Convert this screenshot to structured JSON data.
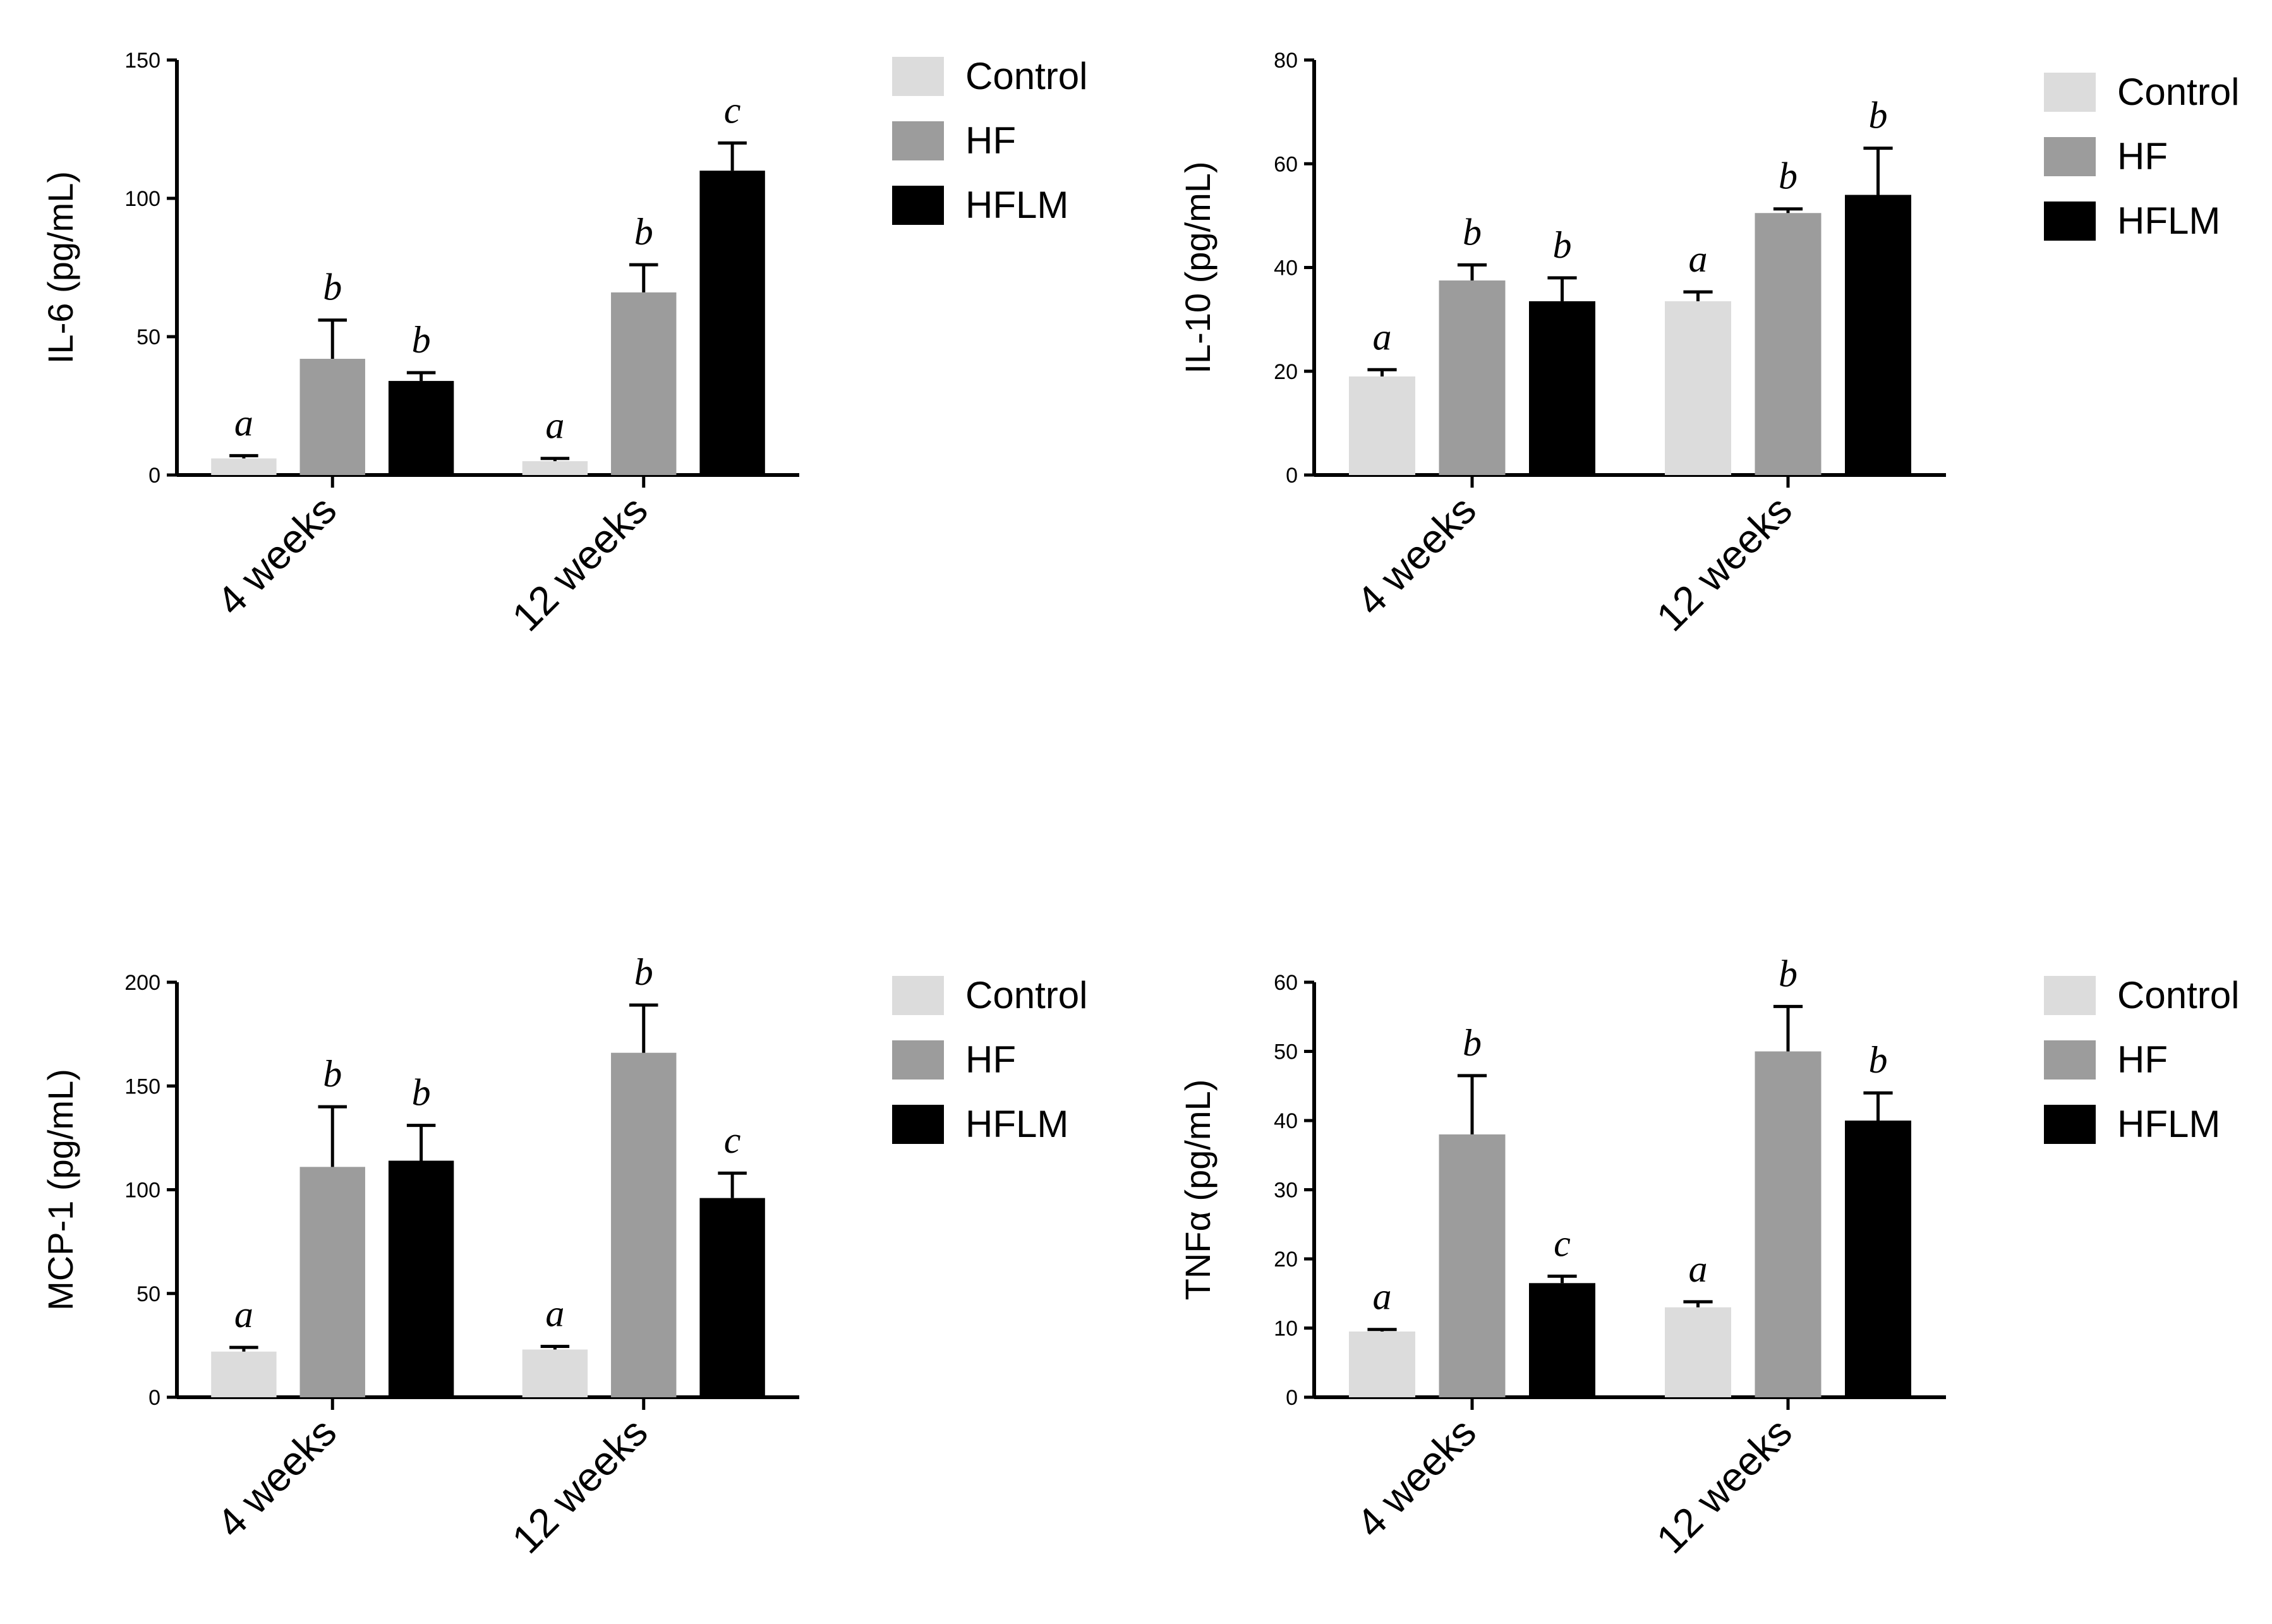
{
  "chart_data": [
    {
      "type": "bar",
      "title": "",
      "xlabel": "",
      "ylabel": "IL-6 (pg/mL)",
      "ylim": [
        0,
        150
      ],
      "yticks": [
        0,
        50,
        100,
        150
      ],
      "categories": [
        "4 weeks",
        "12 weeks"
      ],
      "series": [
        {
          "name": "Control",
          "values": [
            6,
            5
          ],
          "errors": [
            1,
            1
          ],
          "letters": [
            "a",
            "a"
          ]
        },
        {
          "name": "HF",
          "values": [
            42,
            66
          ],
          "errors": [
            14,
            10
          ],
          "letters": [
            "b",
            "b"
          ]
        },
        {
          "name": "HFLM",
          "values": [
            34,
            110
          ],
          "errors": [
            3,
            10
          ],
          "letters": [
            "b",
            "c"
          ]
        }
      ],
      "legend": "right"
    },
    {
      "type": "bar",
      "title": "",
      "xlabel": "",
      "ylabel": "IL-10 (pg/mL)",
      "ylim": [
        0,
        80
      ],
      "yticks": [
        0,
        20,
        40,
        60,
        80
      ],
      "categories": [
        "4 weeks",
        "12 weeks"
      ],
      "series": [
        {
          "name": "Control",
          "values": [
            19,
            33.5
          ],
          "errors": [
            1.3,
            1.8
          ],
          "letters": [
            "a",
            "a"
          ]
        },
        {
          "name": "HF",
          "values": [
            37.5,
            50.5
          ],
          "errors": [
            3,
            0.8
          ],
          "letters": [
            "b",
            "b"
          ]
        },
        {
          "name": "HFLM",
          "values": [
            33.5,
            54
          ],
          "errors": [
            4.5,
            9
          ],
          "letters": [
            "b",
            "b"
          ]
        }
      ],
      "legend": "right"
    },
    {
      "type": "bar",
      "title": "",
      "xlabel": "",
      "ylabel": "MCP-1 (pg/mL)",
      "ylim": [
        0,
        200
      ],
      "yticks": [
        0,
        50,
        100,
        150,
        200
      ],
      "categories": [
        "4 weeks",
        "12 weeks"
      ],
      "series": [
        {
          "name": "Control",
          "values": [
            22,
            23
          ],
          "errors": [
            2,
            1.5
          ],
          "letters": [
            "a",
            "a"
          ]
        },
        {
          "name": "HF",
          "values": [
            111,
            166
          ],
          "errors": [
            29,
            23
          ],
          "letters": [
            "b",
            "b"
          ]
        },
        {
          "name": "HFLM",
          "values": [
            114,
            96
          ],
          "errors": [
            17,
            12
          ],
          "letters": [
            "b",
            "c"
          ]
        }
      ],
      "legend": "right"
    },
    {
      "type": "bar",
      "title": "",
      "xlabel": "",
      "ylabel": "TNFα (pg/mL)",
      "ylim": [
        0,
        60
      ],
      "yticks": [
        0,
        10,
        20,
        30,
        40,
        50,
        60
      ],
      "categories": [
        "4 weeks",
        "12 weeks"
      ],
      "series": [
        {
          "name": "Control",
          "values": [
            9.5,
            13
          ],
          "errors": [
            0.3,
            0.8
          ],
          "letters": [
            "a",
            "a"
          ]
        },
        {
          "name": "HF",
          "values": [
            38,
            50
          ],
          "errors": [
            8.5,
            6.5
          ],
          "letters": [
            "b",
            "b"
          ]
        },
        {
          "name": "HFLM",
          "values": [
            16.5,
            40
          ],
          "errors": [
            1,
            4
          ],
          "letters": [
            "c",
            "b"
          ]
        }
      ],
      "legend": "right"
    }
  ],
  "colors": {
    "Control": "#dcdcdc",
    "HF": "#9c9c9c",
    "HFLM": "#000000"
  }
}
